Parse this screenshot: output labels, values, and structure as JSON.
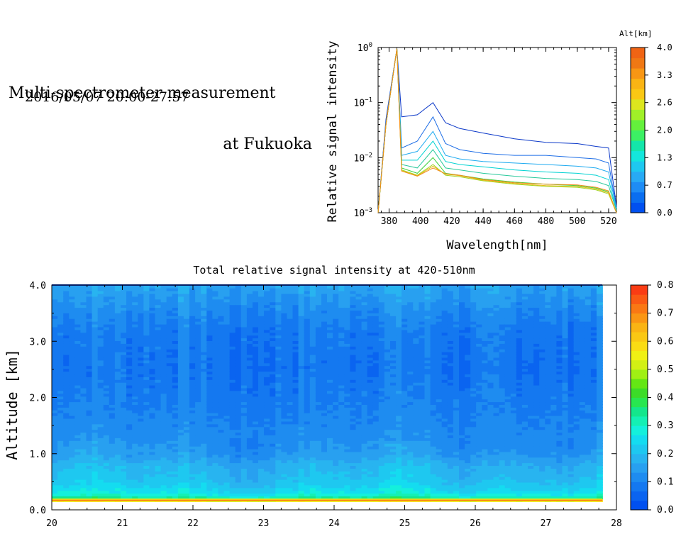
{
  "header": {
    "title_line1": "Multi-spectrometer measurement",
    "title_line2": "at Fukuoka",
    "datetime": "2016/05/07 20:00-27:57"
  },
  "chart_data": [
    {
      "type": "line",
      "title": "",
      "xlabel": "Wavelength[nm]",
      "ylabel": "Relative signal intensity",
      "xlim": [
        373,
        525
      ],
      "ylim": [
        0.001,
        1
      ],
      "yscale": "log",
      "x_ticks": [
        380,
        400,
        420,
        440,
        460,
        480,
        500,
        520
      ],
      "y_ticks": [
        "10^-3",
        "10^-2",
        "10^-1",
        "10^0"
      ],
      "x": [
        373,
        378,
        385,
        388,
        398,
        408,
        416,
        425,
        440,
        460,
        480,
        500,
        512,
        520,
        525
      ],
      "series": [
        {
          "color": "#0a37c8",
          "values": [
            0.001,
            0.05,
            0.95,
            0.055,
            0.06,
            0.1,
            0.043,
            0.034,
            0.028,
            0.022,
            0.019,
            0.018,
            0.016,
            0.015,
            0.0013
          ]
        },
        {
          "color": "#1e6ee6",
          "values": [
            0.001,
            0.045,
            0.95,
            0.015,
            0.02,
            0.055,
            0.018,
            0.014,
            0.012,
            0.011,
            0.011,
            0.01,
            0.0095,
            0.008,
            0.0012
          ]
        },
        {
          "color": "#1eaaf0",
          "values": [
            0.001,
            0.04,
            0.95,
            0.011,
            0.013,
            0.03,
            0.011,
            0.0095,
            0.0085,
            0.008,
            0.0075,
            0.007,
            0.0065,
            0.0055,
            0.0012
          ]
        },
        {
          "color": "#00d2d2",
          "values": [
            0.001,
            0.04,
            0.95,
            0.009,
            0.009,
            0.02,
            0.0085,
            0.0075,
            0.0068,
            0.006,
            0.0055,
            0.0052,
            0.0048,
            0.004,
            0.0011
          ]
        },
        {
          "color": "#28c89b",
          "values": [
            0.001,
            0.04,
            0.95,
            0.0075,
            0.0065,
            0.014,
            0.0065,
            0.006,
            0.0052,
            0.0046,
            0.0042,
            0.004,
            0.0037,
            0.0031,
            0.0011
          ]
        },
        {
          "color": "#3cd23c",
          "values": [
            0.001,
            0.04,
            0.95,
            0.0065,
            0.0052,
            0.01,
            0.0052,
            0.0048,
            0.0041,
            0.0036,
            0.0033,
            0.0031,
            0.0028,
            0.0024,
            0.001
          ]
        },
        {
          "color": "#a0d21e",
          "values": [
            0.001,
            0.04,
            0.95,
            0.006,
            0.0048,
            0.0075,
            0.0048,
            0.0045,
            0.0038,
            0.0033,
            0.003,
            0.0029,
            0.0026,
            0.0022,
            0.001
          ]
        },
        {
          "color": "#e6be14",
          "values": [
            0.001,
            0.04,
            0.95,
            0.0058,
            0.0047,
            0.007,
            0.005,
            0.0047,
            0.0039,
            0.0034,
            0.0031,
            0.003,
            0.0027,
            0.0023,
            0.001
          ]
        },
        {
          "color": "#f08c1e",
          "values": [
            0.001,
            0.04,
            0.95,
            0.0057,
            0.0046,
            0.0065,
            0.0051,
            0.0048,
            0.004,
            0.0035,
            0.0033,
            0.0032,
            0.0029,
            0.0025,
            0.001
          ]
        }
      ],
      "colorbar": {
        "label": "Alt[km]",
        "tick_labels": [
          "0.0",
          "0.7",
          "1.3",
          "2.0",
          "2.6",
          "3.3",
          "4.0"
        ],
        "range": [
          0,
          4
        ],
        "colors": [
          "#0050f0",
          "#0a6ef0",
          "#1e8cf5",
          "#28aaf5",
          "#1ec8f0",
          "#14e6dc",
          "#14e6aa",
          "#3cf064",
          "#64f03c",
          "#a0f028",
          "#dce61e",
          "#fac814",
          "#fab414",
          "#f89614",
          "#f07814",
          "#f06414"
        ]
      }
    },
    {
      "type": "heatmap",
      "title": "Total relative signal intensity at 420-510nm",
      "xlabel": "",
      "ylabel": "Altitude [km]",
      "xlim": [
        20,
        28
      ],
      "ylim": [
        0,
        4
      ],
      "x_ticks": [
        "20",
        "21",
        "22",
        "23",
        "24",
        "25",
        "26",
        "27",
        "28"
      ],
      "y_ticks": [
        "0.0",
        "1.0",
        "2.0",
        "3.0",
        "4.0"
      ],
      "data_x_range": [
        20,
        27.8
      ],
      "data_y_range": [
        0.15,
        4.0
      ],
      "altitude_levels": [
        0.15,
        0.2,
        0.3,
        0.5,
        0.8,
        1.0,
        1.3,
        1.8,
        2.5,
        3.2,
        3.6,
        4.0
      ],
      "mean_profile_values": [
        0.75,
        0.35,
        0.26,
        0.21,
        0.18,
        0.14,
        0.12,
        0.1,
        0.08,
        0.09,
        0.12,
        0.16
      ],
      "colorbar": {
        "tick_labels": [
          "0.0",
          "0.1",
          "0.2",
          "0.3",
          "0.4",
          "0.5",
          "0.6",
          "0.7",
          "0.8"
        ],
        "range": [
          0,
          0.8
        ],
        "colors": [
          "#0050f0",
          "#0a64f0",
          "#1478f0",
          "#1e8cf0",
          "#28a0f0",
          "#28b4f0",
          "#1ec8f0",
          "#14dcf0",
          "#14f0dc",
          "#14f0b4",
          "#14e68c",
          "#28e650",
          "#3cdc28",
          "#64e614",
          "#a0f014",
          "#d2f014",
          "#f0f014",
          "#fadc14",
          "#fac814",
          "#fab414",
          "#fa9614",
          "#fa7814",
          "#fa5a14",
          "#fa3c14"
        ]
      }
    }
  ]
}
